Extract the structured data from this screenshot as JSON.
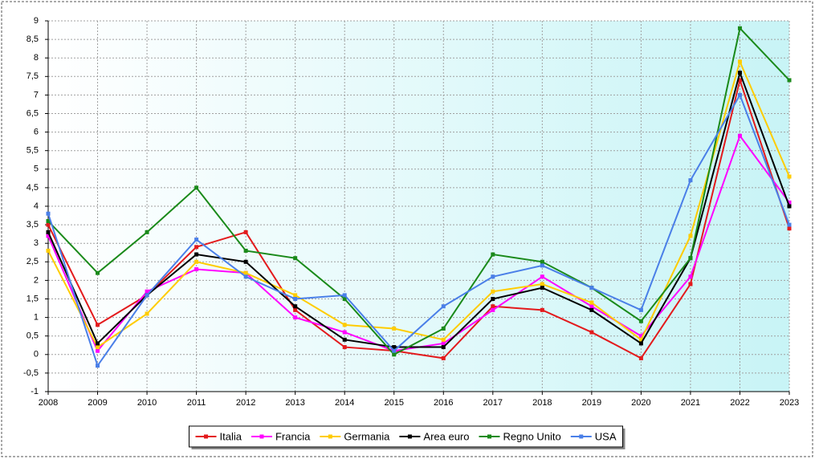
{
  "chart_data": {
    "type": "line",
    "categories": [
      "2008",
      "2009",
      "2010",
      "2011",
      "2012",
      "2013",
      "2014",
      "2015",
      "2016",
      "2017",
      "2018",
      "2019",
      "2020",
      "2021",
      "2022",
      "2023"
    ],
    "series": [
      {
        "name": "Italia",
        "color": "#e31a1c",
        "values": [
          3.5,
          0.8,
          1.6,
          2.9,
          3.3,
          1.2,
          0.2,
          0.1,
          -0.1,
          1.3,
          1.2,
          0.6,
          -0.1,
          1.9,
          7.4,
          3.4
        ]
      },
      {
        "name": "Francia",
        "color": "#ff00ff",
        "values": [
          3.2,
          0.1,
          1.7,
          2.3,
          2.2,
          1.0,
          0.6,
          0.1,
          0.3,
          1.2,
          2.1,
          1.3,
          0.5,
          2.1,
          5.9,
          4.1
        ]
      },
      {
        "name": "Germania",
        "color": "#ffcc00",
        "values": [
          2.8,
          0.2,
          1.1,
          2.5,
          2.2,
          1.6,
          0.8,
          0.7,
          0.4,
          1.7,
          1.9,
          1.4,
          0.4,
          3.2,
          7.9,
          4.8
        ]
      },
      {
        "name": "Area euro",
        "color": "#000000",
        "values": [
          3.3,
          0.3,
          1.6,
          2.7,
          2.5,
          1.3,
          0.4,
          0.2,
          0.2,
          1.5,
          1.8,
          1.2,
          0.3,
          2.6,
          7.6,
          4.0
        ]
      },
      {
        "name": "Regno Unito",
        "color": "#1a8a1a",
        "values": [
          3.6,
          2.2,
          3.3,
          4.5,
          2.8,
          2.6,
          1.5,
          0.0,
          0.7,
          2.7,
          2.5,
          1.8,
          0.9,
          2.6,
          8.8,
          7.4
        ]
      },
      {
        "name": "USA",
        "color": "#4a7fe8",
        "values": [
          3.8,
          -0.3,
          1.6,
          3.1,
          2.1,
          1.5,
          1.6,
          0.1,
          1.3,
          2.1,
          2.4,
          1.8,
          1.2,
          4.7,
          7.0,
          3.5
        ]
      }
    ],
    "ylim": [
      -1,
      9
    ],
    "yticks": [
      -1,
      {
        "value": -0.5,
        "label": "-0,5"
      },
      0,
      {
        "value": 0.5,
        "label": "0,5"
      },
      1,
      {
        "value": 1.5,
        "label": "1,5"
      },
      2,
      {
        "value": 2.5,
        "label": "2,5"
      },
      3,
      {
        "value": 3.5,
        "label": "3,5"
      },
      4,
      {
        "value": 4.5,
        "label": "4,5"
      },
      5,
      {
        "value": 5.5,
        "label": "5,5"
      },
      6,
      {
        "value": 6.5,
        "label": "6,5"
      },
      7,
      {
        "value": 7.5,
        "label": "7,5"
      },
      8,
      {
        "value": 8.5,
        "label": "8,5"
      },
      9
    ],
    "grid": true,
    "legend": "bottom"
  }
}
